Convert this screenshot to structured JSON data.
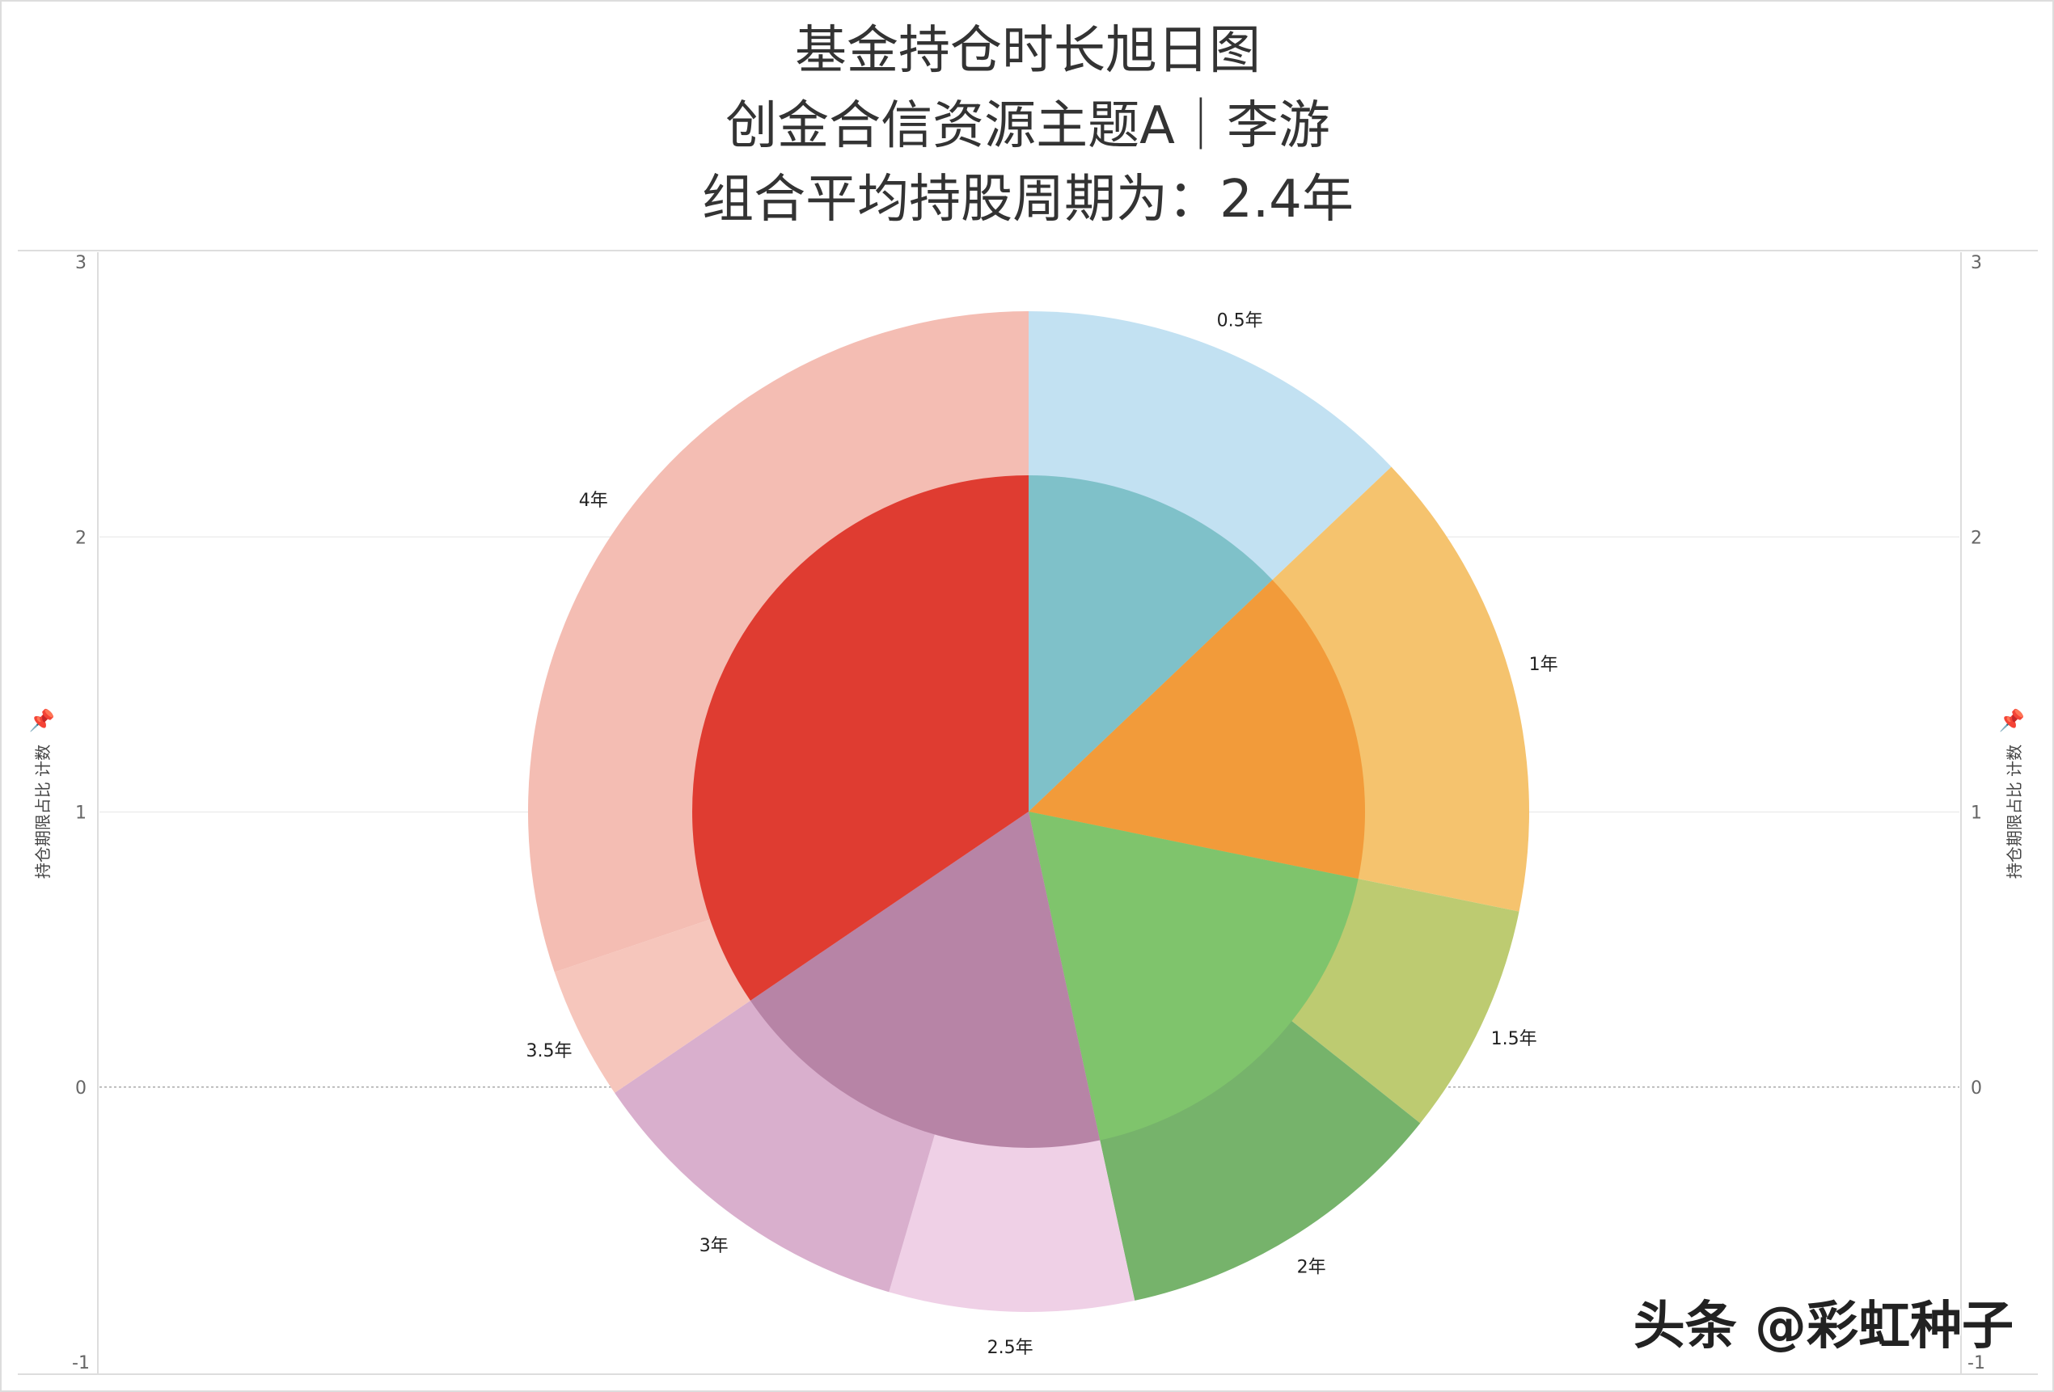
{
  "title": {
    "line1": "基金持仓时长旭日图",
    "line2": "创金合信资源主题A｜李游",
    "line3": "组合平均持股周期为：2.4年"
  },
  "watermark": "头条 @彩虹种子",
  "chart_data": {
    "type": "pie",
    "subtype": "sunburst",
    "ylabel": "持仓期限占比 计数",
    "y_ticks": [
      "3",
      "2",
      "1",
      "0",
      "-1"
    ],
    "ylim": [
      -1,
      3
    ],
    "grid": true,
    "unit": "percent",
    "outer_ring": [
      {
        "label": "0.5年",
        "value": 12.9,
        "color": "#c2e1f2"
      },
      {
        "label": "1年",
        "value": 15.3,
        "color": "#f5c36e"
      },
      {
        "label": "1.5年",
        "value": 7.5,
        "color": "#bdcb71"
      },
      {
        "label": "2年",
        "value": 10.9,
        "color": "#76b36b"
      },
      {
        "label": "2.5年",
        "value": 7.9,
        "color": "#efd0e6"
      },
      {
        "label": "3年",
        "value": 11.0,
        "color": "#d9afcd"
      },
      {
        "label": "3.5年",
        "value": 4.3,
        "color": "#f6c6bc"
      },
      {
        "label": "4年",
        "value": 30.2,
        "color": "#f4bdb3"
      }
    ],
    "inner_ring": [
      {
        "value": 12.9,
        "color": "#7fc1c9"
      },
      {
        "value": 15.3,
        "color": "#f29b3a"
      },
      {
        "value": 18.4,
        "color": "#7fc46c"
      },
      {
        "value": 18.9,
        "color": "#b784a6"
      },
      {
        "value": 34.5,
        "color": "#df3c31"
      }
    ]
  }
}
